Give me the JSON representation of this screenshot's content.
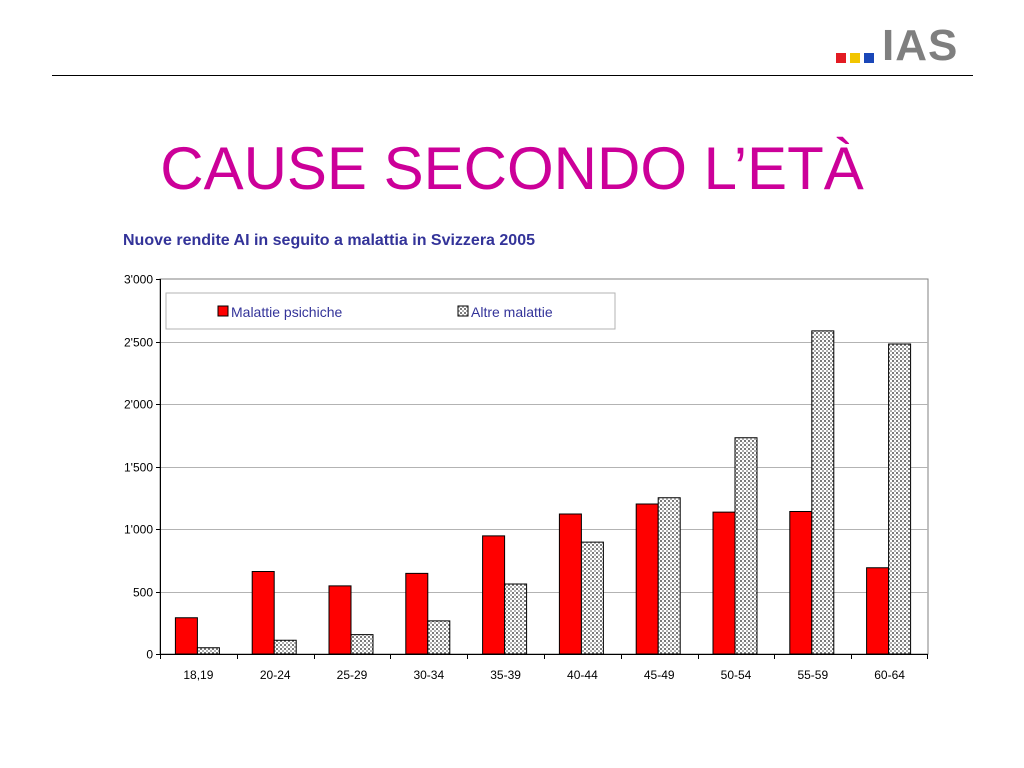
{
  "slide": {
    "title": "CAUSE SECONDO L’ETÀ",
    "logo": {
      "text": "IAS",
      "squares": [
        "#e31b23",
        "#f2c500",
        "#1a47b8"
      ]
    },
    "title_color": "#cc0099",
    "chart_title_color": "#333399"
  },
  "chart_data": {
    "type": "bar",
    "title": "Nuove rendite AI in seguito a malattia in Svizzera 2005",
    "xlabel": "",
    "ylabel": "",
    "categories": [
      "18,19",
      "20-24",
      "25-29",
      "30-34",
      "35-39",
      "40-44",
      "45-49",
      "50-54",
      "55-59",
      "60-64"
    ],
    "series": [
      {
        "name": "Malattie psichiche",
        "color": "#ff0000",
        "pattern": "solid",
        "values": [
          290,
          660,
          545,
          645,
          945,
          1120,
          1200,
          1135,
          1140,
          690
        ]
      },
      {
        "name": "Altre malattie",
        "color": "#a0a0a0",
        "pattern": "dotted-grid",
        "values": [
          50,
          110,
          155,
          265,
          560,
          895,
          1250,
          1730,
          2585,
          2480
        ]
      }
    ],
    "ylim": [
      0,
      3000
    ],
    "yticks": [
      0,
      500,
      1000,
      1500,
      2000,
      2500,
      3000
    ],
    "ytick_labels": [
      "0",
      "500",
      "1'000",
      "1'500",
      "2'000",
      "2'500",
      "3'000"
    ],
    "grid": true,
    "legend_position": "top-inside"
  }
}
